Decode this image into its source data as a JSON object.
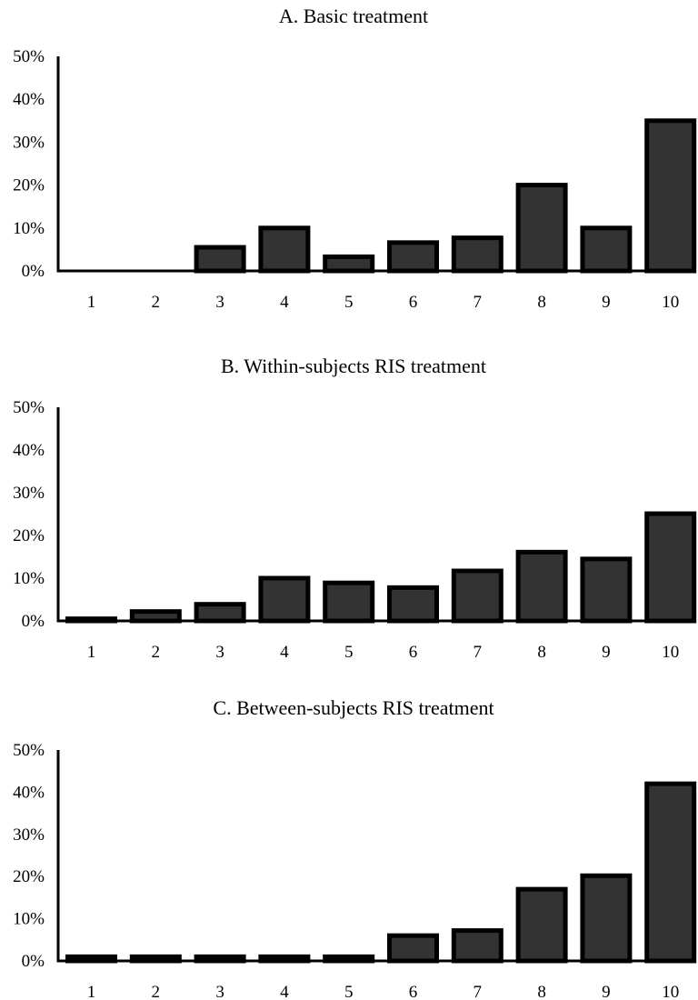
{
  "chart_data": [
    {
      "type": "bar",
      "title": "A. Basic treatment",
      "xlabel": "",
      "ylabel": "",
      "categories": [
        "1",
        "2",
        "3",
        "4",
        "5",
        "6",
        "7",
        "8",
        "9",
        "10"
      ],
      "values": [
        0,
        0,
        5.5,
        10,
        3.3,
        6.6,
        7.7,
        20,
        10,
        35
      ],
      "ylim": [
        0,
        50
      ],
      "yticks": [
        "0%",
        "10%",
        "20%",
        "30%",
        "40%",
        "50%"
      ],
      "grid": false,
      "bar_color": "#333333"
    },
    {
      "type": "bar",
      "title": "B. Within-subjects RIS treatment",
      "xlabel": "",
      "ylabel": "",
      "categories": [
        "1",
        "2",
        "3",
        "4",
        "5",
        "6",
        "7",
        "8",
        "9",
        "10"
      ],
      "values": [
        0.5,
        2.2,
        3.9,
        10,
        8.9,
        7.8,
        11.7,
        16.1,
        14.5,
        25.1
      ],
      "ylim": [
        0,
        50
      ],
      "yticks": [
        "0%",
        "10%",
        "20%",
        "30%",
        "40%",
        "50%"
      ],
      "grid": false,
      "bar_color": "#333333"
    },
    {
      "type": "bar",
      "title": "C. Between-subjects RIS treatment",
      "xlabel": "",
      "ylabel": "",
      "categories": [
        "1",
        "2",
        "3",
        "4",
        "5",
        "6",
        "7",
        "8",
        "9",
        "10"
      ],
      "values": [
        1,
        1,
        1,
        1,
        1,
        6,
        7.2,
        17,
        20.2,
        42
      ],
      "ylim": [
        0,
        50
      ],
      "yticks": [
        "0%",
        "10%",
        "20%",
        "30%",
        "40%",
        "50%"
      ],
      "grid": false,
      "bar_color": "#333333"
    }
  ]
}
